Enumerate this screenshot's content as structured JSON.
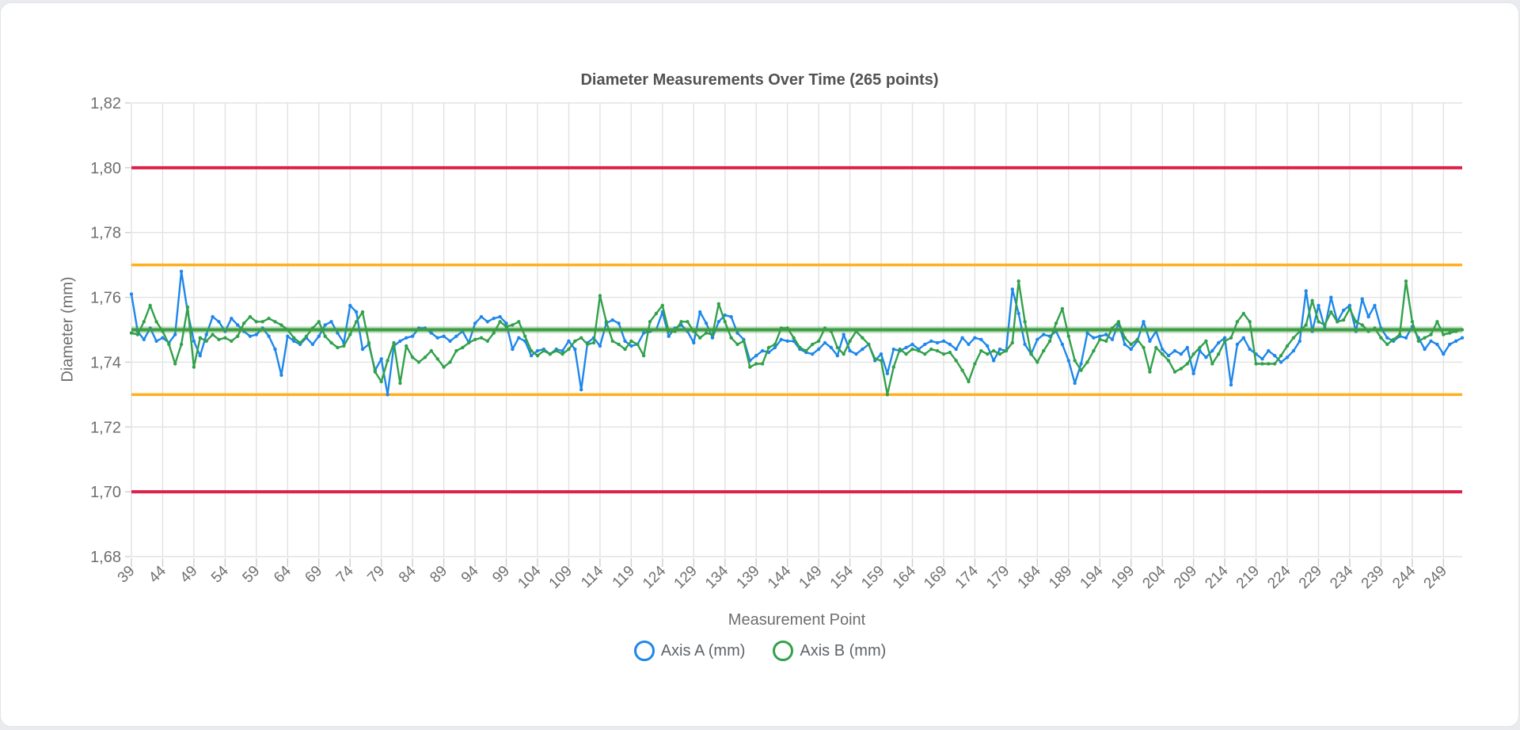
{
  "page": {
    "background": "#e9ebee",
    "card_background": "#ffffff"
  },
  "chart_data": {
    "type": "line",
    "title": "Diameter Measurements Over Time (265 points)",
    "total_points": 265,
    "xlabel": "Measurement Point",
    "ylabel": "Diameter (mm)",
    "decimal_separator": ",",
    "grid": true,
    "legend_position": "bottom",
    "x_start": 39,
    "x_end": 252,
    "x_tick_step": 5,
    "x_tick_labels": [
      "39",
      "44",
      "49",
      "54",
      "59",
      "64",
      "69",
      "74",
      "79",
      "84",
      "89",
      "94",
      "99",
      "104",
      "109",
      "114",
      "119",
      "124",
      "129",
      "134",
      "139",
      "144",
      "149",
      "154",
      "159",
      "164",
      "169",
      "174",
      "179",
      "184",
      "189",
      "194",
      "199",
      "204",
      "209",
      "214",
      "219",
      "224",
      "229",
      "234",
      "239",
      "244",
      "249"
    ],
    "y_min": 1.68,
    "y_max": 1.82,
    "y_ticks": [
      {
        "value": 1.82,
        "label": "1,82"
      },
      {
        "value": 1.8,
        "label": "1,80"
      },
      {
        "value": 1.78,
        "label": "1,78"
      },
      {
        "value": 1.76,
        "label": "1,76"
      },
      {
        "value": 1.74,
        "label": "1,74"
      },
      {
        "value": 1.72,
        "label": "1,72"
      },
      {
        "value": 1.7,
        "label": "1,70"
      },
      {
        "value": 1.68,
        "label": "1,68"
      }
    ],
    "reference_lines": [
      {
        "value": 1.8,
        "color": "#dc2249",
        "width": 4,
        "role": "upper-limit"
      },
      {
        "value": 1.77,
        "color": "#ffaf1f",
        "width": 3.5,
        "role": "upper-warning"
      },
      {
        "value": 1.75,
        "color": "#3e9c44",
        "width": 4,
        "role": "center"
      },
      {
        "value": 1.73,
        "color": "#ffaf1f",
        "width": 3.5,
        "role": "lower-warning"
      },
      {
        "value": 1.7,
        "color": "#dc2249",
        "width": 4,
        "role": "lower-limit"
      }
    ],
    "series": [
      {
        "name": "Axis A (mm)",
        "color": "#1e87ea",
        "values": [
          1.761,
          1.7495,
          1.747,
          1.7505,
          1.7465,
          1.7475,
          1.746,
          1.7485,
          1.768,
          1.7555,
          1.7465,
          1.742,
          1.7485,
          1.754,
          1.7525,
          1.7495,
          1.7535,
          1.7515,
          1.7495,
          1.748,
          1.7485,
          1.7505,
          1.748,
          1.744,
          1.736,
          1.748,
          1.7465,
          1.7455,
          1.7475,
          1.7455,
          1.748,
          1.7515,
          1.7525,
          1.749,
          1.746,
          1.7575,
          1.7555,
          1.744,
          1.7455,
          1.7375,
          1.741,
          1.73,
          1.745,
          1.7465,
          1.7475,
          1.748,
          1.7505,
          1.7505,
          1.749,
          1.7475,
          1.748,
          1.7465,
          1.748,
          1.7495,
          1.746,
          1.752,
          1.754,
          1.7525,
          1.7535,
          1.754,
          1.752,
          1.744,
          1.7475,
          1.7465,
          1.742,
          1.7435,
          1.744,
          1.7425,
          1.744,
          1.7435,
          1.7465,
          1.744,
          1.7315,
          1.746,
          1.7475,
          1.745,
          1.752,
          1.753,
          1.752,
          1.7465,
          1.745,
          1.7455,
          1.749,
          1.7495,
          1.75,
          1.7555,
          1.748,
          1.7505,
          1.7515,
          1.7495,
          1.746,
          1.7555,
          1.752,
          1.7475,
          1.7525,
          1.7545,
          1.754,
          1.749,
          1.747,
          1.7405,
          1.742,
          1.7435,
          1.743,
          1.7445,
          1.747,
          1.7465,
          1.7465,
          1.744,
          1.743,
          1.7425,
          1.744,
          1.746,
          1.7445,
          1.742,
          1.7485,
          1.7435,
          1.7425,
          1.744,
          1.7455,
          1.7405,
          1.7425,
          1.7365,
          1.744,
          1.7435,
          1.7445,
          1.7455,
          1.744,
          1.7455,
          1.7465,
          1.746,
          1.7465,
          1.7455,
          1.744,
          1.7475,
          1.7455,
          1.7475,
          1.747,
          1.745,
          1.7405,
          1.744,
          1.7435,
          1.7625,
          1.755,
          1.7455,
          1.7425,
          1.747,
          1.7485,
          1.748,
          1.7495,
          1.7455,
          1.7405,
          1.7335,
          1.7395,
          1.749,
          1.7475,
          1.748,
          1.7485,
          1.747,
          1.752,
          1.7455,
          1.744,
          1.7465,
          1.7525,
          1.7465,
          1.7495,
          1.744,
          1.742,
          1.7435,
          1.7425,
          1.7445,
          1.7365,
          1.7435,
          1.7415,
          1.7435,
          1.746,
          1.7475,
          1.733,
          1.7455,
          1.7475,
          1.744,
          1.7425,
          1.741,
          1.7435,
          1.742,
          1.74,
          1.7415,
          1.7435,
          1.7465,
          1.762,
          1.7495,
          1.7575,
          1.7505,
          1.76,
          1.7525,
          1.756,
          1.7575,
          1.7495,
          1.7595,
          1.754,
          1.7575,
          1.7505,
          1.7475,
          1.7465,
          1.748,
          1.7475,
          1.751,
          1.7475,
          1.744,
          1.7465,
          1.7455,
          1.7425,
          1.7455,
          1.7465,
          1.7475
        ]
      },
      {
        "name": "Axis B (mm)",
        "color": "#31a14b",
        "values": [
          1.749,
          1.7485,
          1.7525,
          1.7575,
          1.7525,
          1.7495,
          1.7455,
          1.7395,
          1.7455,
          1.757,
          1.7385,
          1.7475,
          1.7465,
          1.7485,
          1.747,
          1.7475,
          1.7465,
          1.748,
          1.752,
          1.754,
          1.7525,
          1.7525,
          1.7535,
          1.7525,
          1.7515,
          1.75,
          1.7475,
          1.746,
          1.748,
          1.7505,
          1.7525,
          1.748,
          1.746,
          1.7445,
          1.745,
          1.7485,
          1.7525,
          1.7555,
          1.746,
          1.737,
          1.734,
          1.7405,
          1.746,
          1.7335,
          1.745,
          1.7415,
          1.74,
          1.7415,
          1.7435,
          1.741,
          1.7385,
          1.74,
          1.7435,
          1.7445,
          1.746,
          1.747,
          1.7475,
          1.7465,
          1.749,
          1.7525,
          1.751,
          1.7515,
          1.7525,
          1.748,
          1.7435,
          1.742,
          1.7435,
          1.7425,
          1.7435,
          1.7425,
          1.744,
          1.7465,
          1.7475,
          1.7455,
          1.746,
          1.7605,
          1.7525,
          1.7465,
          1.7455,
          1.744,
          1.7465,
          1.7455,
          1.742,
          1.7525,
          1.755,
          1.7575,
          1.7495,
          1.7495,
          1.7525,
          1.7525,
          1.7495,
          1.7475,
          1.749,
          1.7485,
          1.758,
          1.7525,
          1.7475,
          1.7455,
          1.7465,
          1.7385,
          1.7395,
          1.7395,
          1.7445,
          1.7455,
          1.7505,
          1.7505,
          1.7475,
          1.7445,
          1.7435,
          1.7455,
          1.7465,
          1.7505,
          1.7495,
          1.7445,
          1.7425,
          1.7465,
          1.7495,
          1.7475,
          1.7455,
          1.741,
          1.7405,
          1.73,
          1.7385,
          1.744,
          1.7425,
          1.744,
          1.7435,
          1.7425,
          1.744,
          1.7435,
          1.7425,
          1.743,
          1.7405,
          1.7375,
          1.734,
          1.7395,
          1.7435,
          1.7425,
          1.7435,
          1.7425,
          1.7435,
          1.746,
          1.765,
          1.7525,
          1.7425,
          1.74,
          1.7435,
          1.7465,
          1.752,
          1.7565,
          1.748,
          1.7405,
          1.7375,
          1.74,
          1.7435,
          1.747,
          1.7465,
          1.7505,
          1.7525,
          1.7475,
          1.7455,
          1.747,
          1.7445,
          1.737,
          1.7445,
          1.7425,
          1.7405,
          1.737,
          1.738,
          1.7395,
          1.7425,
          1.7445,
          1.7465,
          1.7395,
          1.7425,
          1.7465,
          1.7475,
          1.7525,
          1.755,
          1.7525,
          1.7395,
          1.7395,
          1.7395,
          1.7395,
          1.742,
          1.745,
          1.7475,
          1.7495,
          1.7515,
          1.759,
          1.7525,
          1.7515,
          1.7555,
          1.7525,
          1.753,
          1.7565,
          1.7525,
          1.7515,
          1.7495,
          1.7505,
          1.7475,
          1.7455,
          1.747,
          1.7485,
          1.765,
          1.7525,
          1.7465,
          1.7475,
          1.7485,
          1.7525,
          1.7485,
          1.749,
          1.7495,
          1.75
        ]
      }
    ],
    "style": {
      "grid_color": "#e2e2e2",
      "tick_color": "#cfcfcf",
      "label_color": "#6e6e6e",
      "title_color": "#525252"
    }
  },
  "legend": {
    "items": [
      {
        "label": "Axis A (mm)",
        "color": "#1e87ea"
      },
      {
        "label": "Axis B (mm)",
        "color": "#31a14b"
      }
    ]
  }
}
